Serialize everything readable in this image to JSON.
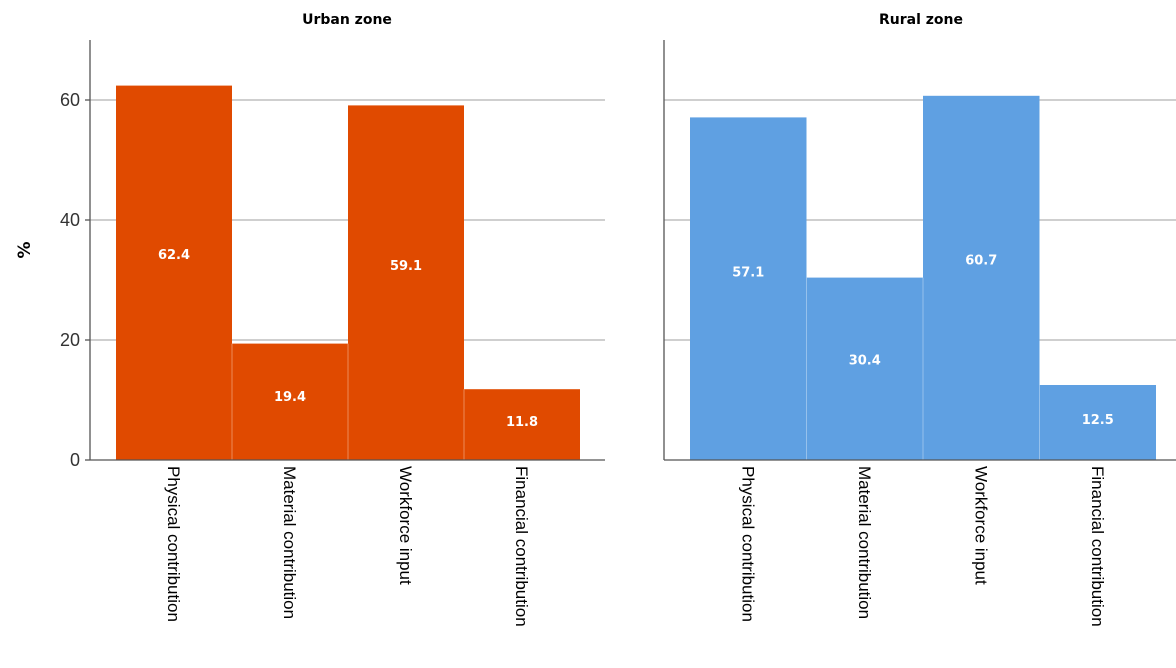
{
  "chart_data": {
    "type": "bar",
    "ylabel": "%",
    "ylim": [
      0,
      70
    ],
    "yticks": [
      0,
      20,
      40,
      60
    ],
    "categories": [
      "Physical contribution",
      "Material contribution",
      "Workforce input",
      "Financial contribution"
    ],
    "panels": [
      {
        "title": "Urban zone",
        "color": "#e04a00",
        "values": [
          62.4,
          19.4,
          59.1,
          11.8
        ]
      },
      {
        "title": "Rural zone",
        "color": "#5fa0e2",
        "values": [
          57.1,
          30.4,
          60.7,
          12.5
        ]
      }
    ],
    "grid": true
  }
}
